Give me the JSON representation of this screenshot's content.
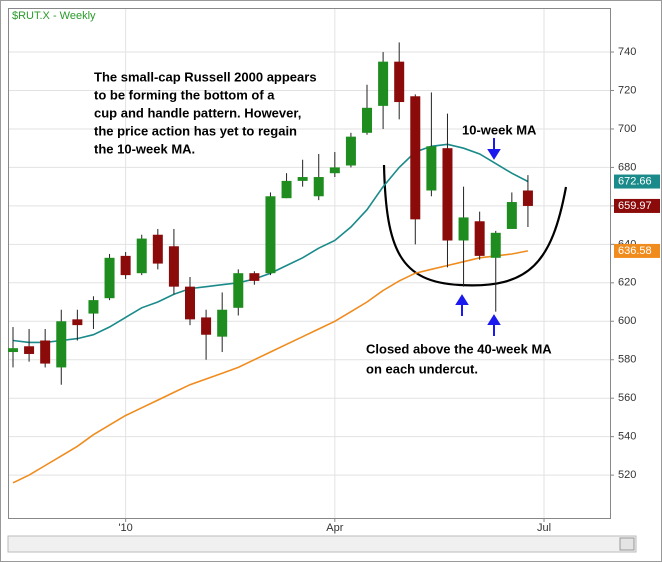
{
  "chart_data": {
    "type": "candlestick",
    "title": "$RUT.X - Weekly",
    "open": [
      584,
      587,
      590,
      576,
      601,
      604,
      612,
      634,
      625,
      645,
      639,
      618,
      602,
      592,
      607,
      625,
      625,
      664,
      673,
      665,
      677,
      681,
      698,
      712,
      735,
      717,
      668,
      690,
      642,
      652,
      633,
      648,
      668
    ],
    "high": [
      597,
      596,
      596,
      606,
      606,
      613,
      635,
      636,
      645,
      648,
      648,
      623,
      606,
      615,
      627,
      626,
      667,
      677,
      684,
      687,
      688,
      698,
      723,
      740,
      745,
      718,
      719,
      708,
      670,
      657,
      647,
      667,
      676
    ],
    "low": [
      576,
      579,
      576,
      567,
      590,
      596,
      611,
      622,
      624,
      627,
      614,
      598,
      580,
      584,
      603,
      619,
      624,
      664,
      670,
      663,
      675,
      680,
      697,
      700,
      705,
      640,
      665,
      628,
      618,
      632,
      605,
      649,
      649
    ],
    "close": [
      586,
      583,
      578,
      600,
      598,
      611,
      633,
      624,
      643,
      630,
      618,
      601,
      593,
      606,
      625,
      621,
      665,
      673,
      675,
      675,
      680,
      696,
      711,
      735,
      714,
      653,
      691,
      642,
      654,
      634,
      646,
      662,
      659.97
    ],
    "up_color": "#1e8c1e",
    "down_color": "#8b0a0a",
    "series": [
      {
        "color": "#1a8a8a",
        "values": [
          590,
          589,
          589,
          590,
          591,
          593,
          597,
          602,
          607,
          610,
          614,
          617,
          618,
          619,
          620,
          622,
          625,
          629,
          633,
          638,
          642,
          649,
          658,
          670,
          680,
          688,
          691,
          692,
          690,
          687,
          682,
          677,
          672.66
        ]
      },
      {
        "color": "#f08c1e",
        "values": [
          516,
          520,
          525,
          530,
          535,
          541,
          546,
          551,
          555,
          559,
          563,
          567,
          570,
          573,
          576,
          580,
          584,
          588,
          592,
          596,
          600,
          605,
          610,
          616,
          621,
          625,
          627,
          629,
          631,
          633,
          634,
          635,
          636.58
        ]
      }
    ],
    "xlim": [
      -0.31,
      37.1
    ],
    "xticks": [
      {
        "value": 7,
        "label": "'10"
      },
      {
        "value": 20,
        "label": "Apr"
      },
      {
        "value": 33,
        "label": "Jul"
      }
    ],
    "ylim": [
      497.7,
      762.9
    ],
    "yticks": [
      520,
      540,
      560,
      580,
      600,
      620,
      640,
      660,
      680,
      700,
      720,
      740
    ],
    "grid": true,
    "annotations": [
      {
        "lines": [
          "The small-cap Russell 2000 appears",
          "to be forming the bottom of a",
          "cup and handle pattern.  However,",
          "the price action has yet to regain",
          "the 10-week MA."
        ]
      },
      {
        "lines": [
          "10-week MA"
        ]
      },
      {
        "lines": [
          "Closed above the 40-week MA",
          "on each undercut."
        ]
      }
    ]
  }
}
